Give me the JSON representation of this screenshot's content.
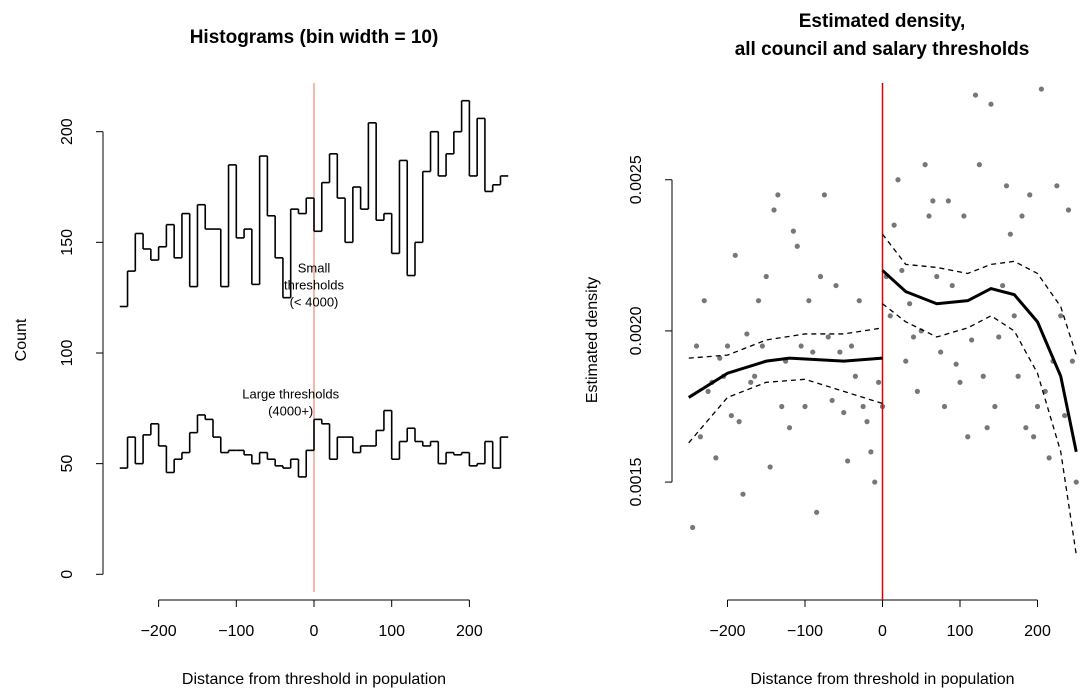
{
  "chart_data": [
    {
      "type": "histogram",
      "title": "Histograms (bin width = 10)",
      "xlabel": "Distance from threshold in population",
      "ylabel": "Count",
      "xlim": [
        -260,
        260
      ],
      "ylim": [
        -8,
        222
      ],
      "xticks": [
        {
          "value": -200,
          "label": "−200"
        },
        {
          "value": -100,
          "label": "−100"
        },
        0,
        100,
        200
      ],
      "yticks": [
        0,
        50,
        100,
        150,
        200
      ],
      "vline": {
        "x": 0,
        "color": "#f4a090"
      },
      "bins": [
        -250,
        -240,
        -230,
        -220,
        -210,
        -200,
        -190,
        -180,
        -170,
        -160,
        -150,
        -140,
        -130,
        -120,
        -110,
        -100,
        -90,
        -80,
        -70,
        -60,
        -50,
        -40,
        -30,
        -20,
        -10,
        0,
        10,
        20,
        30,
        40,
        50,
        60,
        70,
        80,
        90,
        100,
        110,
        120,
        130,
        140,
        150,
        160,
        170,
        180,
        190,
        200,
        210,
        220,
        230,
        240,
        250
      ],
      "series": [
        {
          "name_lines": [
            "Small",
            "thresholds",
            "(< 4000)"
          ],
          "label_at": [
            0,
            138
          ],
          "color": "#000000",
          "values": [
            121,
            137,
            154,
            147,
            142,
            148,
            158,
            143,
            163,
            130,
            167,
            156,
            156,
            130,
            185,
            152,
            156,
            131,
            189,
            162,
            143,
            125,
            165,
            163,
            170,
            155,
            177,
            190,
            170,
            150,
            175,
            165,
            204,
            160,
            163,
            145,
            187,
            135,
            150,
            182,
            200,
            180,
            190,
            200,
            214,
            180,
            206,
            173,
            176,
            180
          ]
        },
        {
          "name_lines": [
            "Large thresholds",
            "(4000+)"
          ],
          "label_at": [
            -30,
            81
          ],
          "color": "#000000",
          "values": [
            48,
            62,
            50,
            63,
            68,
            58,
            46,
            52,
            55,
            64,
            72,
            70,
            62,
            55,
            56,
            56,
            54,
            50,
            55,
            52,
            49,
            48,
            52,
            44,
            56,
            70,
            68,
            52,
            62,
            62,
            55,
            58,
            58,
            65,
            74,
            52,
            60,
            66,
            60,
            58,
            60,
            50,
            55,
            54,
            55,
            49,
            50,
            60,
            48,
            62
          ]
        }
      ]
    },
    {
      "type": "scatter",
      "title": [
        "Estimated density,",
        "all council and salary thresholds"
      ],
      "xlabel": "Distance from threshold in population",
      "ylabel": "Estimated density",
      "xlim": [
        -260,
        260
      ],
      "ylim": [
        0.00111,
        0.00282
      ],
      "xticks": [
        {
          "value": -200,
          "label": "−200"
        },
        {
          "value": -100,
          "label": "−100"
        },
        0,
        100,
        200
      ],
      "yticks": [
        0.0015,
        {
          "value": 0.002,
          "label": "0.0020"
        },
        0.0025
      ],
      "vline": {
        "x": 0,
        "color": "#e00000"
      },
      "points": {
        "color": "#777777",
        "x": [
          -245,
          -240,
          -235,
          -230,
          -225,
          -220,
          -215,
          -210,
          -205,
          -200,
          -195,
          -190,
          -185,
          -180,
          -175,
          -170,
          -165,
          -160,
          -155,
          -150,
          -145,
          -140,
          -135,
          -130,
          -125,
          -120,
          -115,
          -110,
          -105,
          -100,
          -95,
          -90,
          -85,
          -80,
          -75,
          -70,
          -65,
          -60,
          -55,
          -50,
          -45,
          -40,
          -35,
          -30,
          -25,
          -20,
          -15,
          -10,
          -5,
          0,
          5,
          10,
          15,
          20,
          25,
          30,
          35,
          40,
          45,
          50,
          55,
          60,
          65,
          70,
          75,
          80,
          85,
          90,
          95,
          100,
          105,
          110,
          115,
          120,
          125,
          130,
          135,
          140,
          145,
          150,
          155,
          160,
          165,
          170,
          175,
          180,
          185,
          190,
          195,
          200,
          205,
          210,
          215,
          220,
          225,
          230,
          235,
          240,
          245,
          250
        ],
        "y": [
          0.00135,
          0.00195,
          0.00165,
          0.0021,
          0.0018,
          0.00183,
          0.00158,
          0.00191,
          0.00185,
          0.00195,
          0.00172,
          0.00225,
          0.0017,
          0.00146,
          0.00199,
          0.00183,
          0.00185,
          0.0021,
          0.00195,
          0.00218,
          0.00155,
          0.0024,
          0.00245,
          0.00175,
          0.0019,
          0.00168,
          0.00233,
          0.00228,
          0.00195,
          0.00175,
          0.0021,
          0.00193,
          0.0014,
          0.00218,
          0.00245,
          0.00198,
          0.00177,
          0.00215,
          0.00193,
          0.00173,
          0.00157,
          0.00195,
          0.00185,
          0.0021,
          0.00175,
          0.0017,
          0.0016,
          0.0015,
          0.00183,
          0.00175,
          0.00218,
          0.00205,
          0.00235,
          0.0025,
          0.0022,
          0.0019,
          0.00209,
          0.00198,
          0.0018,
          0.002,
          0.00255,
          0.00238,
          0.00243,
          0.00218,
          0.00193,
          0.00175,
          0.00243,
          0.00215,
          0.00189,
          0.00183,
          0.00238,
          0.00165,
          0.00197,
          0.00278,
          0.00255,
          0.00185,
          0.00168,
          0.00275,
          0.00175,
          0.00198,
          0.00215,
          0.00248,
          0.00232,
          0.00205,
          0.00185,
          0.00238,
          0.00168,
          0.00245,
          0.00165,
          0.00175,
          0.0028,
          0.0018,
          0.00158,
          0.0019,
          0.00248,
          0.00205,
          0.00172,
          0.0024,
          0.0019,
          0.0015
        ]
      },
      "series": [
        {
          "color": "#000000",
          "dashed": false,
          "x": [
            -250,
            -200,
            -150,
            -120,
            -50,
            0
          ],
          "values": [
            0.00178,
            0.00186,
            0.0019,
            0.00191,
            0.0019,
            0.00191
          ]
        },
        {
          "color": "#000000",
          "dashed": true,
          "x": [
            -250,
            -200,
            -150,
            -100,
            -50,
            0
          ],
          "values": [
            0.00191,
            0.00192,
            0.00197,
            0.00199,
            0.00199,
            0.00201
          ]
        },
        {
          "color": "#000000",
          "dashed": true,
          "x": [
            -250,
            -200,
            -150,
            -100,
            -50,
            0
          ],
          "values": [
            0.00163,
            0.00178,
            0.00183,
            0.00184,
            0.0018,
            0.00176
          ]
        },
        {
          "color": "#000000",
          "dashed": false,
          "x": [
            0,
            30,
            70,
            110,
            140,
            170,
            200,
            230,
            250
          ],
          "values": [
            0.0022,
            0.00213,
            0.00209,
            0.0021,
            0.00214,
            0.00212,
            0.00203,
            0.00185,
            0.0016
          ]
        },
        {
          "color": "#000000",
          "dashed": true,
          "x": [
            0,
            30,
            70,
            110,
            140,
            170,
            200,
            230,
            250
          ],
          "values": [
            0.00232,
            0.00222,
            0.00221,
            0.00219,
            0.00222,
            0.00223,
            0.00219,
            0.00208,
            0.00192
          ]
        },
        {
          "color": "#000000",
          "dashed": true,
          "x": [
            0,
            30,
            70,
            110,
            140,
            170,
            200,
            230,
            250
          ],
          "values": [
            0.00209,
            0.00203,
            0.00198,
            0.00201,
            0.00205,
            0.002,
            0.00186,
            0.0016,
            0.00126
          ]
        }
      ]
    }
  ]
}
